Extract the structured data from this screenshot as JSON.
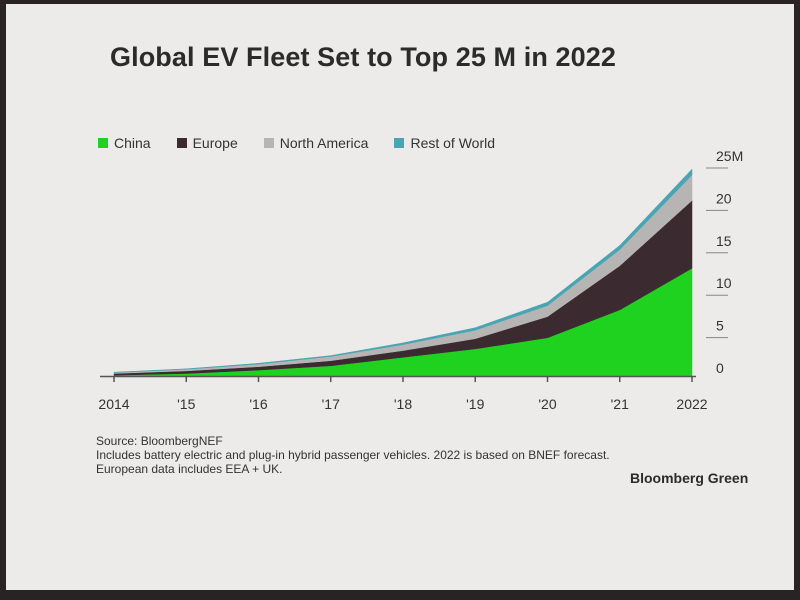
{
  "title": "Global EV Fleet Set to Top 25 M in 2022",
  "chart_data": {
    "type": "area",
    "stacked": true,
    "title": "Global EV Fleet Set to Top 25 M in 2022",
    "x": [
      2014,
      2015,
      2016,
      2017,
      2018,
      2019,
      2020,
      2021,
      2022
    ],
    "x_tick_labels": [
      "2014",
      "'15",
      "'16",
      "'17",
      "'18",
      "'19",
      "'20",
      "'21",
      "2022"
    ],
    "y_tick_labels": [
      "0",
      "5",
      "10",
      "15",
      "20",
      "25M"
    ],
    "y_ticks": [
      0,
      5,
      10,
      15,
      20,
      25
    ],
    "ylim": [
      0,
      25
    ],
    "legend_position": "top-left",
    "series": [
      {
        "name": "China",
        "color": "#1fd21f",
        "values": [
          0.1,
          0.3,
          0.7,
          1.2,
          2.2,
          3.2,
          4.5,
          7.8,
          12.7
        ]
      },
      {
        "name": "Europe",
        "color": "#3b2a30",
        "values": [
          0.2,
          0.3,
          0.4,
          0.6,
          0.8,
          1.2,
          2.5,
          5.2,
          8.0
        ]
      },
      {
        "name": "North America",
        "color": "#b7b4b4",
        "values": [
          0.1,
          0.2,
          0.3,
          0.5,
          0.7,
          1.0,
          1.3,
          1.9,
          3.0
        ]
      },
      {
        "name": "Rest of World",
        "color": "#48a6b4",
        "values": [
          0.05,
          0.05,
          0.1,
          0.1,
          0.2,
          0.3,
          0.4,
          0.5,
          0.7
        ]
      }
    ]
  },
  "notes": {
    "source": "Source: BloombergNEF",
    "line1": "Includes battery electric and plug-in hybrid passenger vehicles. 2022 is based on BNEF forecast.",
    "line2": "European data includes EEA + UK."
  },
  "brand": "Bloomberg Green"
}
